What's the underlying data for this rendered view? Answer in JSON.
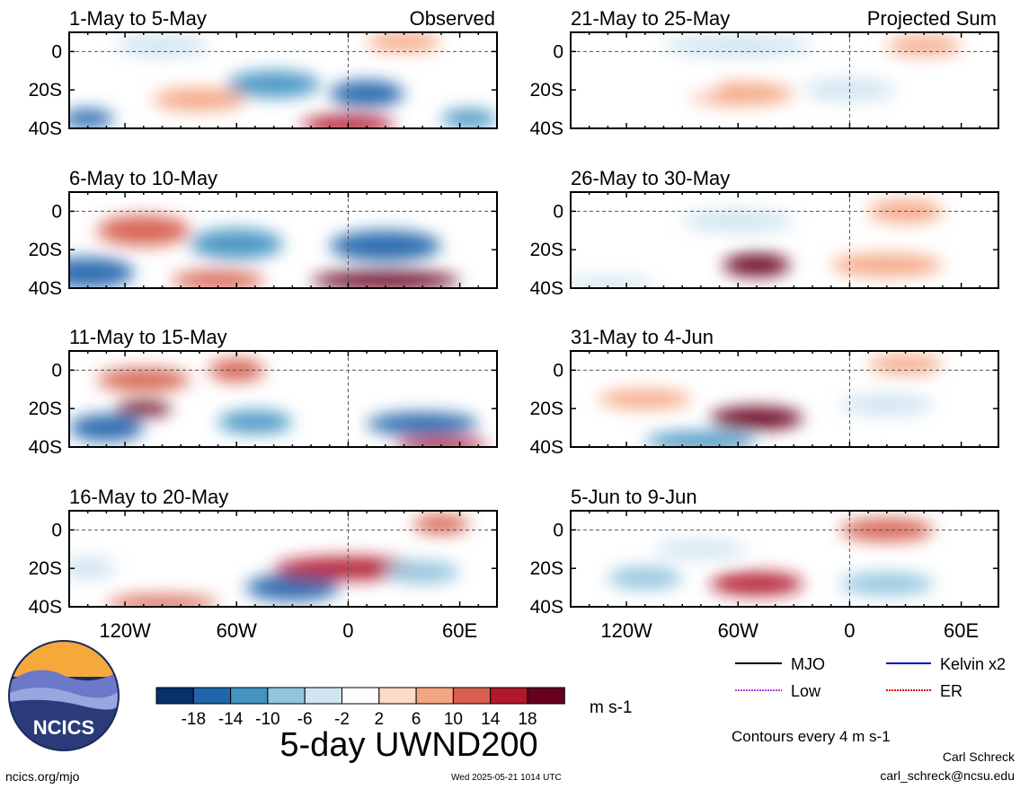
{
  "figure": {
    "title": "5-day UWND200",
    "site": "ncics.org/mjo",
    "timestamp": "Wed 2025-05-21 1014 UTC",
    "author": "Carl Schreck",
    "email": "carl_schreck@ncsu.edu",
    "logo_text": "NCICS",
    "contour_note": "Contours every 4 m s-1"
  },
  "chart_data": {
    "type": "heatmap",
    "variable": "200-hPa zonal wind anomaly",
    "units": "m s-1",
    "x_ticks": [
      "120W",
      "60W",
      "0",
      "60E"
    ],
    "x_tick_values": [
      -120,
      -60,
      0,
      60
    ],
    "xlim": [
      -150,
      80
    ],
    "y_ticks": [
      "0",
      "20S",
      "40S"
    ],
    "y_tick_values": [
      0,
      -20,
      -40
    ],
    "ylim": [
      -40,
      10
    ],
    "colorbar": {
      "labels": [
        "-18",
        "-14",
        "-10",
        "-6",
        "-2",
        "2",
        "6",
        "10",
        "14",
        "18"
      ],
      "levels": [
        -18,
        -14,
        -10,
        -6,
        -2,
        2,
        6,
        10,
        14,
        18
      ],
      "colors": [
        "#08306b",
        "#2166ac",
        "#4393c3",
        "#92c5de",
        "#d1e5f0",
        "#ffffff",
        "#fddbc7",
        "#f4a582",
        "#d6604d",
        "#b2182b",
        "#67001f"
      ]
    },
    "legend": [
      {
        "label": "MJO",
        "color": "#000000"
      },
      {
        "label": "Kelvin x2",
        "color": "#0000cc"
      },
      {
        "label": "Low",
        "color": "#b040e0"
      },
      {
        "label": "ER",
        "color": "#e00000"
      }
    ],
    "panels": [
      {
        "title": "1-May to 5-May",
        "tag": "Observed",
        "anomalies": [
          {
            "lon": -140,
            "lat": -35,
            "v": -16,
            "w": 14,
            "h": 5
          },
          {
            "lon": -100,
            "lat": 3,
            "v": -6,
            "w": 25,
            "h": 6
          },
          {
            "lon": -80,
            "lat": -25,
            "v": 6,
            "w": 25,
            "h": 6
          },
          {
            "lon": -40,
            "lat": -17,
            "v": -12,
            "w": 25,
            "h": 7
          },
          {
            "lon": 10,
            "lat": -22,
            "v": -16,
            "w": 20,
            "h": 7
          },
          {
            "lon": 0,
            "lat": -38,
            "v": 14,
            "w": 25,
            "h": 5
          },
          {
            "lon": 30,
            "lat": 5,
            "v": 6,
            "w": 20,
            "h": 5
          },
          {
            "lon": 65,
            "lat": -35,
            "v": -12,
            "w": 15,
            "h": 5
          }
        ]
      },
      {
        "title": "6-May to 10-May",
        "anomalies": [
          {
            "lon": -140,
            "lat": -32,
            "v": -18,
            "w": 25,
            "h": 8
          },
          {
            "lon": -110,
            "lat": -10,
            "v": 10,
            "w": 25,
            "h": 8
          },
          {
            "lon": -60,
            "lat": -17,
            "v": -12,
            "w": 25,
            "h": 8
          },
          {
            "lon": 20,
            "lat": -18,
            "v": -16,
            "w": 30,
            "h": 8
          },
          {
            "lon": 20,
            "lat": -36,
            "v": 18,
            "w": 40,
            "h": 5
          },
          {
            "lon": -70,
            "lat": -36,
            "v": 10,
            "w": 25,
            "h": 5
          }
        ]
      },
      {
        "title": "11-May to 15-May",
        "anomalies": [
          {
            "lon": -130,
            "lat": -30,
            "v": -18,
            "w": 20,
            "h": 7
          },
          {
            "lon": -110,
            "lat": -20,
            "v": 18,
            "w": 15,
            "h": 4
          },
          {
            "lon": -110,
            "lat": -5,
            "v": 10,
            "w": 25,
            "h": 6
          },
          {
            "lon": -60,
            "lat": 0,
            "v": 10,
            "w": 15,
            "h": 6
          },
          {
            "lon": -50,
            "lat": -27,
            "v": -12,
            "w": 20,
            "h": 6
          },
          {
            "lon": 40,
            "lat": -28,
            "v": -16,
            "w": 30,
            "h": 6
          },
          {
            "lon": 50,
            "lat": -39,
            "v": 14,
            "w": 25,
            "h": 4
          }
        ]
      },
      {
        "title": "16-May to 20-May",
        "anomalies": [
          {
            "lon": -140,
            "lat": -20,
            "v": -6,
            "w": 15,
            "h": 6
          },
          {
            "lon": -30,
            "lat": -30,
            "v": -18,
            "w": 25,
            "h": 7
          },
          {
            "lon": 0,
            "lat": -20,
            "v": 14,
            "w": 40,
            "h": 6
          },
          {
            "lon": 50,
            "lat": 3,
            "v": 10,
            "w": 15,
            "h": 5
          },
          {
            "lon": 40,
            "lat": -22,
            "v": -10,
            "w": 20,
            "h": 6
          },
          {
            "lon": -100,
            "lat": -38,
            "v": 10,
            "w": 30,
            "h": 4
          }
        ]
      },
      {
        "title": "21-May to 25-May",
        "tag": "Projected Sum",
        "anomalies": [
          {
            "lon": -60,
            "lat": 3,
            "v": -6,
            "w": 40,
            "h": 6
          },
          {
            "lon": -60,
            "lat": -22,
            "v": 6,
            "w": 30,
            "h": 6
          },
          {
            "lon": 0,
            "lat": -20,
            "v": -6,
            "w": 25,
            "h": 6
          },
          {
            "lon": 40,
            "lat": 3,
            "v": 6,
            "w": 20,
            "h": 5
          },
          {
            "lon": -100,
            "lat": -18,
            "v": -2,
            "w": 30,
            "h": 6
          }
        ]
      },
      {
        "title": "26-May to 30-May",
        "anomalies": [
          {
            "lon": -50,
            "lat": -28,
            "v": 18,
            "w": 18,
            "h": 6
          },
          {
            "lon": -60,
            "lat": -5,
            "v": -6,
            "w": 30,
            "h": 6
          },
          {
            "lon": 20,
            "lat": -28,
            "v": 6,
            "w": 30,
            "h": 6
          },
          {
            "lon": 30,
            "lat": 0,
            "v": 6,
            "w": 20,
            "h": 6
          },
          {
            "lon": -130,
            "lat": -38,
            "v": -6,
            "w": 25,
            "h": 4
          }
        ]
      },
      {
        "title": "31-May to 4-Jun",
        "anomalies": [
          {
            "lon": -50,
            "lat": -25,
            "v": 18,
            "w": 25,
            "h": 6
          },
          {
            "lon": -80,
            "lat": -37,
            "v": -14,
            "w": 30,
            "h": 5
          },
          {
            "lon": -110,
            "lat": -15,
            "v": 6,
            "w": 25,
            "h": 5
          },
          {
            "lon": 20,
            "lat": -18,
            "v": -6,
            "w": 25,
            "h": 6
          },
          {
            "lon": 30,
            "lat": 3,
            "v": 6,
            "w": 20,
            "h": 5
          }
        ]
      },
      {
        "title": "5-Jun to 9-Jun",
        "anomalies": [
          {
            "lon": -50,
            "lat": -28,
            "v": 14,
            "w": 25,
            "h": 6
          },
          {
            "lon": -110,
            "lat": -25,
            "v": -10,
            "w": 20,
            "h": 6
          },
          {
            "lon": 20,
            "lat": 0,
            "v": 10,
            "w": 25,
            "h": 6
          },
          {
            "lon": 20,
            "lat": -28,
            "v": -10,
            "w": 25,
            "h": 6
          },
          {
            "lon": -80,
            "lat": -10,
            "v": -6,
            "w": 25,
            "h": 5
          }
        ]
      }
    ]
  }
}
